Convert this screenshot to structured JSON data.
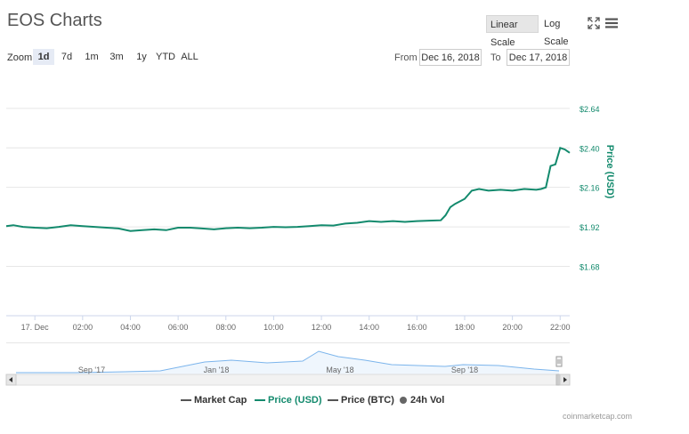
{
  "header": {
    "title": "EOS Charts",
    "linear_scale_label": "Linear Scale",
    "log_scale_label": "Log Scale"
  },
  "range_selector": {
    "zoom_label": "Zoom",
    "buttons": [
      "1d",
      "7d",
      "1m",
      "3m",
      "1y",
      "YTD",
      "ALL"
    ],
    "active": "1d",
    "from_label": "From",
    "from_value": "Dec 16, 2018",
    "to_label": "To",
    "to_value": "Dec 17, 2018"
  },
  "legend": {
    "market_cap": "Market Cap",
    "price_usd": "Price (USD)",
    "price_btc": "Price (BTC)",
    "vol_24h": "24h Vol"
  },
  "credit": "coinmarketcap.com",
  "colors": {
    "price_usd": "#138a6d",
    "navigator_line": "#7cb5ec",
    "grid": "#e6e6e6"
  },
  "chart_data": {
    "type": "line",
    "ylabel": "Price (USD)",
    "y_ticks": [
      "$1.68",
      "$1.92",
      "$2.16",
      "$2.40",
      "$2.64"
    ],
    "ylim": [
      1.38,
      2.85
    ],
    "x_ticks": [
      "17. Dec",
      "02:00",
      "04:00",
      "06:00",
      "08:00",
      "10:00",
      "12:00",
      "14:00",
      "16:00",
      "18:00",
      "20:00",
      "22:00"
    ],
    "x_tick_hours": [
      0,
      2,
      4,
      6,
      8,
      10,
      12,
      14,
      16,
      18,
      20,
      22
    ],
    "xlim_hours": [
      -1.2,
      22.4
    ],
    "grid": true,
    "series": [
      {
        "name": "Price (USD)",
        "color": "#138a6d",
        "hours": [
          -1.2,
          -0.9,
          -0.5,
          0,
          0.5,
          1,
          1.5,
          2,
          2.5,
          3,
          3.5,
          4,
          4.5,
          5,
          5.5,
          6,
          6.5,
          7,
          7.5,
          8,
          8.5,
          9,
          9.5,
          10,
          10.5,
          11,
          11.5,
          12,
          12.5,
          13,
          13.5,
          14,
          14.5,
          15,
          15.5,
          16,
          16.5,
          17,
          17.2,
          17.4,
          17.6,
          18,
          18.3,
          18.6,
          19,
          19.5,
          20,
          20.5,
          21,
          21.2,
          21.4,
          21.6,
          21.8,
          22,
          22.2,
          22.4
        ],
        "values": [
          1.925,
          1.93,
          1.92,
          1.915,
          1.912,
          1.92,
          1.93,
          1.925,
          1.92,
          1.915,
          1.91,
          1.895,
          1.9,
          1.905,
          1.9,
          1.915,
          1.915,
          1.91,
          1.905,
          1.912,
          1.915,
          1.912,
          1.915,
          1.92,
          1.918,
          1.92,
          1.925,
          1.93,
          1.928,
          1.94,
          1.945,
          1.955,
          1.95,
          1.955,
          1.95,
          1.955,
          1.958,
          1.96,
          1.99,
          2.04,
          2.06,
          2.09,
          2.14,
          2.15,
          2.14,
          2.145,
          2.14,
          2.15,
          2.145,
          2.15,
          2.16,
          2.29,
          2.3,
          2.4,
          2.39,
          2.37
        ]
      }
    ]
  },
  "navigator": {
    "x_ticks": [
      "Sep '17",
      "Jan '18",
      "May '18",
      "Sep '18"
    ]
  }
}
